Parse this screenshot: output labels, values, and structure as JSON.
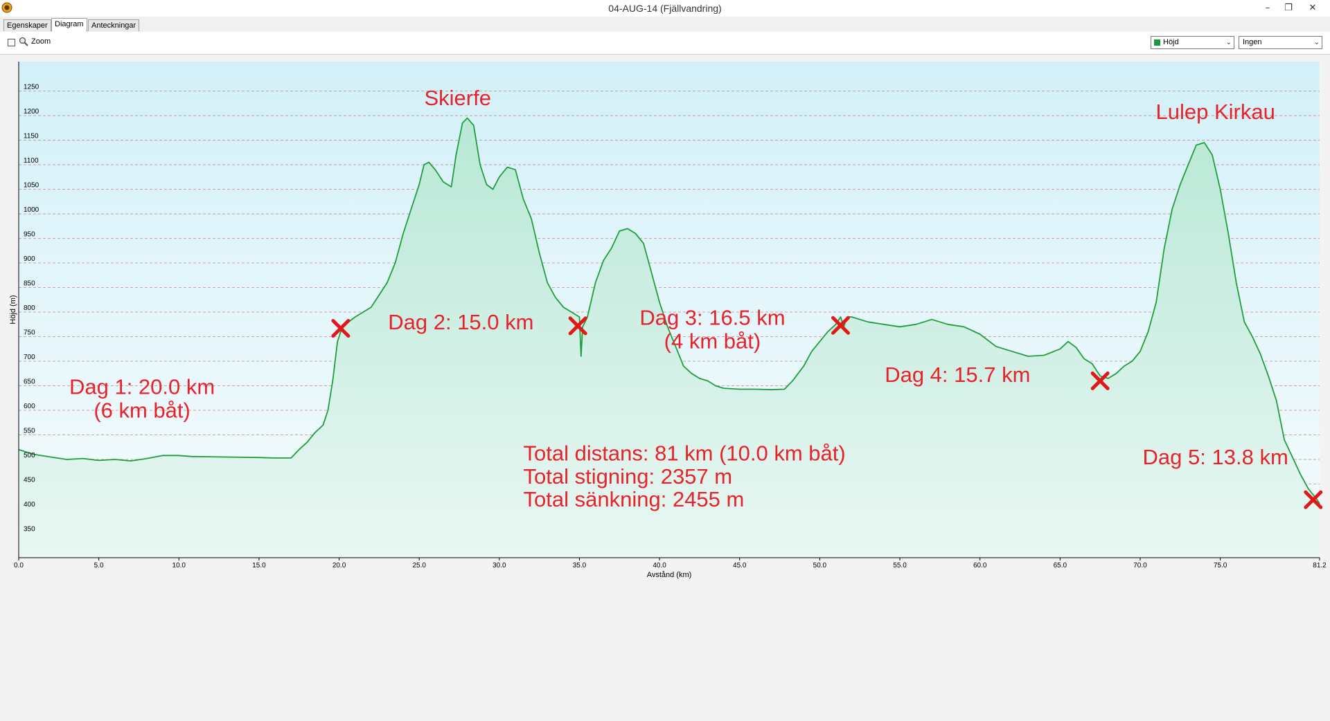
{
  "window": {
    "title": "04-AUG-14 (Fjällvandring)",
    "icon": "app-globe-icon",
    "minimize_glyph": "–",
    "restore_glyph": "❐",
    "close_glyph": "✕"
  },
  "tabs": [
    {
      "label": "Egenskaper",
      "active": false
    },
    {
      "label": "Diagram",
      "active": true
    },
    {
      "label": "Anteckningar",
      "active": false
    }
  ],
  "toolbar": {
    "zoom_label": "Zoom",
    "zoom_checked": false,
    "series_select": {
      "value": "Höjd",
      "swatch_color": "#1a9a3a"
    },
    "secondary_select": {
      "value": "Ingen"
    }
  },
  "colors": {
    "line": "#1f9e3c",
    "fill_top": "#c8eef4",
    "fill_bottom": "#eef8fa",
    "grid": "#c08080",
    "annotation": "#e8222a",
    "marker": "#e01818"
  },
  "chart_data": {
    "type": "area",
    "title": "",
    "xlabel": "Avstånd (km)",
    "ylabel": "Höjd (m)",
    "xlim": [
      0,
      81.2
    ],
    "ylim": [
      300,
      1310
    ],
    "x_ticks": [
      "0.0",
      "5.0",
      "10.0",
      "15.0",
      "20.0",
      "25.0",
      "30.0",
      "35.0",
      "40.0",
      "45.0",
      "50.0",
      "55.0",
      "60.0",
      "65.0",
      "70.0",
      "75.0",
      "81.2"
    ],
    "y_ticks": [
      "350",
      "400",
      "450",
      "500",
      "550",
      "600",
      "650",
      "700",
      "750",
      "800",
      "850",
      "900",
      "950",
      "1000",
      "1050",
      "1100",
      "1150",
      "1200",
      "1250"
    ],
    "grid": true,
    "series": [
      {
        "points": [
          [
            0.0,
            520
          ],
          [
            0.5,
            515
          ],
          [
            1.0,
            510
          ],
          [
            2.0,
            505
          ],
          [
            3.0,
            500
          ],
          [
            4.0,
            502
          ],
          [
            5.0,
            498
          ],
          [
            6.0,
            500
          ],
          [
            7.0,
            497
          ],
          [
            8.0,
            502
          ],
          [
            9.0,
            508
          ],
          [
            10.0,
            508
          ],
          [
            10.8,
            506
          ],
          [
            11.0,
            506
          ],
          [
            13.0,
            505
          ],
          [
            15.0,
            504
          ],
          [
            16.0,
            503
          ],
          [
            17.0,
            503
          ],
          [
            17.5,
            520
          ],
          [
            18.0,
            535
          ],
          [
            18.5,
            555
          ],
          [
            19.0,
            570
          ],
          [
            19.3,
            600
          ],
          [
            19.6,
            660
          ],
          [
            19.9,
            740
          ],
          [
            20.2,
            770
          ],
          [
            20.6,
            780
          ],
          [
            21.0,
            790
          ],
          [
            22.0,
            810
          ],
          [
            23.0,
            860
          ],
          [
            23.5,
            900
          ],
          [
            24.0,
            960
          ],
          [
            24.5,
            1010
          ],
          [
            25.0,
            1060
          ],
          [
            25.3,
            1100
          ],
          [
            25.6,
            1105
          ],
          [
            26.0,
            1090
          ],
          [
            26.5,
            1065
          ],
          [
            27.0,
            1055
          ],
          [
            27.3,
            1120
          ],
          [
            27.7,
            1185
          ],
          [
            28.0,
            1195
          ],
          [
            28.4,
            1180
          ],
          [
            28.8,
            1100
          ],
          [
            29.2,
            1060
          ],
          [
            29.6,
            1050
          ],
          [
            30.0,
            1075
          ],
          [
            30.5,
            1095
          ],
          [
            31.0,
            1090
          ],
          [
            31.5,
            1030
          ],
          [
            32.0,
            990
          ],
          [
            32.5,
            920
          ],
          [
            33.0,
            860
          ],
          [
            33.5,
            830
          ],
          [
            34.0,
            810
          ],
          [
            34.5,
            800
          ],
          [
            35.0,
            790
          ],
          [
            35.1,
            710
          ],
          [
            35.2,
            770
          ],
          [
            35.5,
            790
          ],
          [
            36.0,
            860
          ],
          [
            36.5,
            905
          ],
          [
            37.0,
            930
          ],
          [
            37.5,
            965
          ],
          [
            38.0,
            970
          ],
          [
            38.5,
            960
          ],
          [
            39.0,
            940
          ],
          [
            39.5,
            880
          ],
          [
            40.0,
            820
          ],
          [
            40.5,
            770
          ],
          [
            41.0,
            730
          ],
          [
            41.5,
            690
          ],
          [
            42.0,
            675
          ],
          [
            42.5,
            665
          ],
          [
            43.0,
            660
          ],
          [
            43.5,
            650
          ],
          [
            44.0,
            645
          ],
          [
            45.0,
            643
          ],
          [
            46.0,
            643
          ],
          [
            47.0,
            642
          ],
          [
            47.8,
            643
          ],
          [
            48.3,
            660
          ],
          [
            49.0,
            690
          ],
          [
            49.5,
            720
          ],
          [
            50.0,
            740
          ],
          [
            50.5,
            760
          ],
          [
            51.0,
            775
          ],
          [
            51.3,
            790
          ],
          [
            51.5,
            770
          ],
          [
            51.7,
            790
          ],
          [
            52.0,
            790
          ],
          [
            53.0,
            780
          ],
          [
            54.0,
            775
          ],
          [
            55.0,
            770
          ],
          [
            56.0,
            775
          ],
          [
            57.0,
            785
          ],
          [
            58.0,
            775
          ],
          [
            59.0,
            770
          ],
          [
            60.0,
            755
          ],
          [
            61.0,
            730
          ],
          [
            62.0,
            720
          ],
          [
            63.0,
            710
          ],
          [
            64.0,
            712
          ],
          [
            65.0,
            725
          ],
          [
            65.5,
            740
          ],
          [
            66.0,
            728
          ],
          [
            66.5,
            705
          ],
          [
            67.0,
            695
          ],
          [
            67.5,
            670
          ],
          [
            68.0,
            665
          ],
          [
            68.5,
            675
          ],
          [
            69.0,
            690
          ],
          [
            69.5,
            700
          ],
          [
            70.0,
            720
          ],
          [
            70.5,
            760
          ],
          [
            71.0,
            820
          ],
          [
            71.5,
            930
          ],
          [
            72.0,
            1010
          ],
          [
            72.5,
            1060
          ],
          [
            73.0,
            1100
          ],
          [
            73.5,
            1140
          ],
          [
            74.0,
            1145
          ],
          [
            74.5,
            1120
          ],
          [
            75.0,
            1050
          ],
          [
            75.5,
            960
          ],
          [
            76.0,
            860
          ],
          [
            76.5,
            780
          ],
          [
            77.0,
            750
          ],
          [
            77.5,
            715
          ],
          [
            78.0,
            670
          ],
          [
            78.5,
            620
          ],
          [
            79.0,
            540
          ],
          [
            79.5,
            505
          ],
          [
            80.0,
            470
          ],
          [
            80.5,
            440
          ],
          [
            81.0,
            420
          ],
          [
            81.2,
            410
          ]
        ]
      }
    ],
    "markers": [
      {
        "x": 20.1,
        "y": 767
      },
      {
        "x": 34.9,
        "y": 772
      },
      {
        "x": 51.3,
        "y": 773
      },
      {
        "x": 67.5,
        "y": 660
      },
      {
        "x": 80.8,
        "y": 418
      }
    ],
    "annotations": [
      {
        "key": "dag1_line1",
        "text": "Dag 1: 20.0 km",
        "x": 7.7,
        "y": 633,
        "anchor": "middle"
      },
      {
        "key": "dag1_line2",
        "text": "(6 km båt)",
        "x": 7.7,
        "y": 585,
        "anchor": "middle"
      },
      {
        "key": "skierfe",
        "text": "Skierfe",
        "x": 27.4,
        "y": 1221,
        "anchor": "middle"
      },
      {
        "key": "dag2",
        "text": "Dag 2: 15.0 km",
        "x": 27.6,
        "y": 765,
        "anchor": "middle"
      },
      {
        "key": "dag3_line1",
        "text": "Dag 3: 16.5 km",
        "x": 43.3,
        "y": 774,
        "anchor": "middle"
      },
      {
        "key": "dag3_line2",
        "text": "(4 km båt)",
        "x": 43.3,
        "y": 726,
        "anchor": "middle"
      },
      {
        "key": "dag4",
        "text": "Dag 4: 15.7 km",
        "x": 58.6,
        "y": 658,
        "anchor": "middle"
      },
      {
        "key": "lulep",
        "text": "Lulep Kirkau",
        "x": 74.7,
        "y": 1193,
        "anchor": "middle"
      },
      {
        "key": "dag5",
        "text": "Dag 5: 13.8 km",
        "x": 74.7,
        "y": 490,
        "anchor": "middle"
      },
      {
        "key": "total_distans",
        "text": "Total distans: 81 km (10.0 km båt)",
        "x": 31.5,
        "y": 498,
        "anchor": "start"
      },
      {
        "key": "total_stigning",
        "text": "Total stigning: 2357 m",
        "x": 31.5,
        "y": 451,
        "anchor": "start"
      },
      {
        "key": "total_sankning",
        "text": "Total sänkning: 2455 m",
        "x": 31.5,
        "y": 404,
        "anchor": "start"
      }
    ]
  }
}
